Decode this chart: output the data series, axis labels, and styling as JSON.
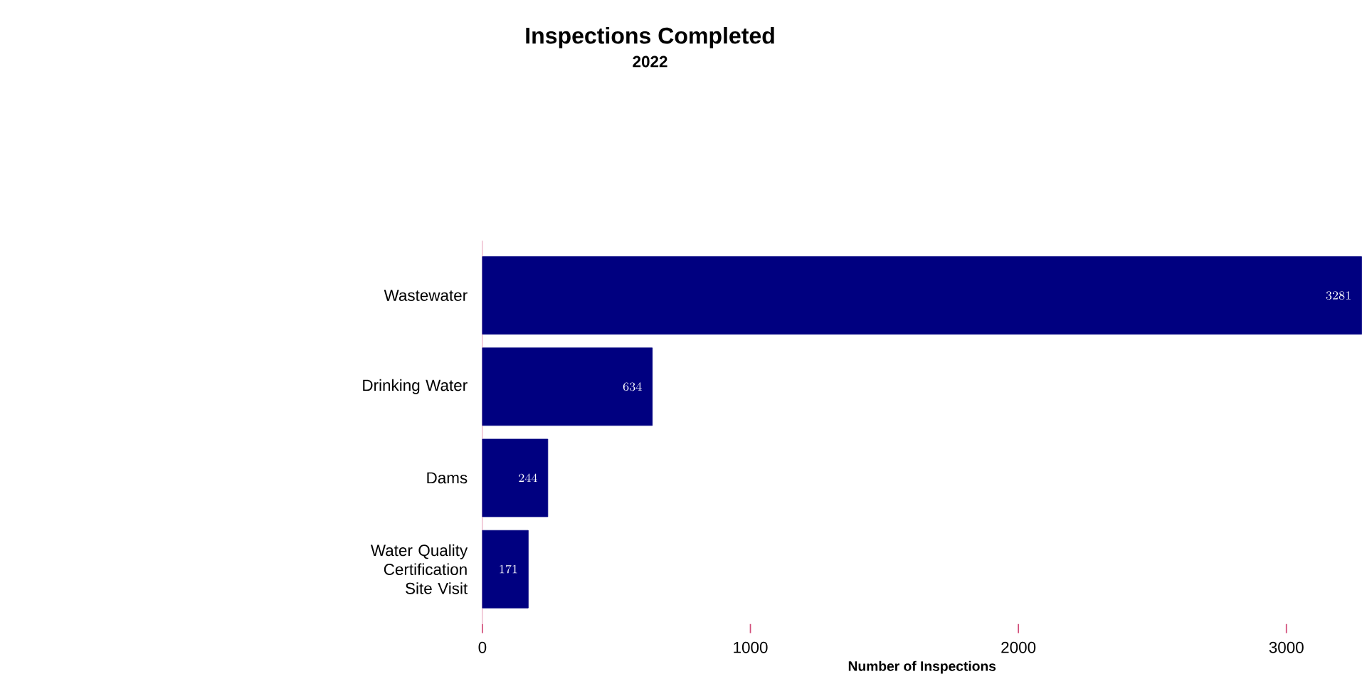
{
  "chart_data": {
    "type": "bar",
    "orientation": "horizontal",
    "title": "Inspections Completed",
    "subtitle": "2022",
    "xlabel": "Number of Inspections",
    "categories": [
      "Wastewater",
      "Drinking Water",
      "Dams",
      "Water Quality Certification Site Visit"
    ],
    "values": [
      3281,
      634,
      244,
      171
    ],
    "color": "#000080",
    "xlim": [
      0,
      3281
    ],
    "xticks": [
      0,
      1000,
      2000,
      3000
    ],
    "data_labels": true
  }
}
